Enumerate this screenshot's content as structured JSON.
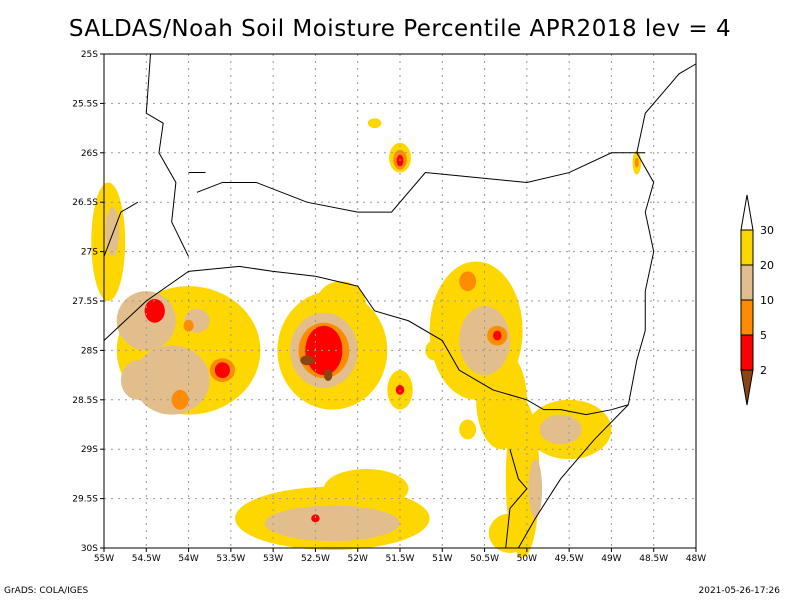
{
  "title": "SALDAS/Noah Soil Moisture Percentile APR2018 lev = 4",
  "footer_left": "GrADS: COLA/IGES",
  "footer_right": "2021-05-26-17:26",
  "map": {
    "lon_range": [
      -55,
      -48
    ],
    "lat_range": [
      -30,
      -25
    ],
    "x_ticks": [
      "55W",
      "54.5W",
      "54W",
      "53.5W",
      "53W",
      "52.5W",
      "52W",
      "51.5W",
      "51W",
      "50.5W",
      "50W",
      "49.5W",
      "49W",
      "48.5W",
      "48W"
    ],
    "y_ticks": [
      "25S",
      "25.5S",
      "26S",
      "26.5S",
      "27S",
      "27.5S",
      "28S",
      "28.5S",
      "29S",
      "29.5S",
      "30S"
    ],
    "grid": true
  },
  "legend": {
    "levels": [
      "2",
      "5",
      "10",
      "20",
      "30"
    ],
    "colors": [
      "#8B4513",
      "#FF0000",
      "#FF8C00",
      "#E1BE8C",
      "#FFD700",
      "#FFFFFF"
    ]
  }
}
